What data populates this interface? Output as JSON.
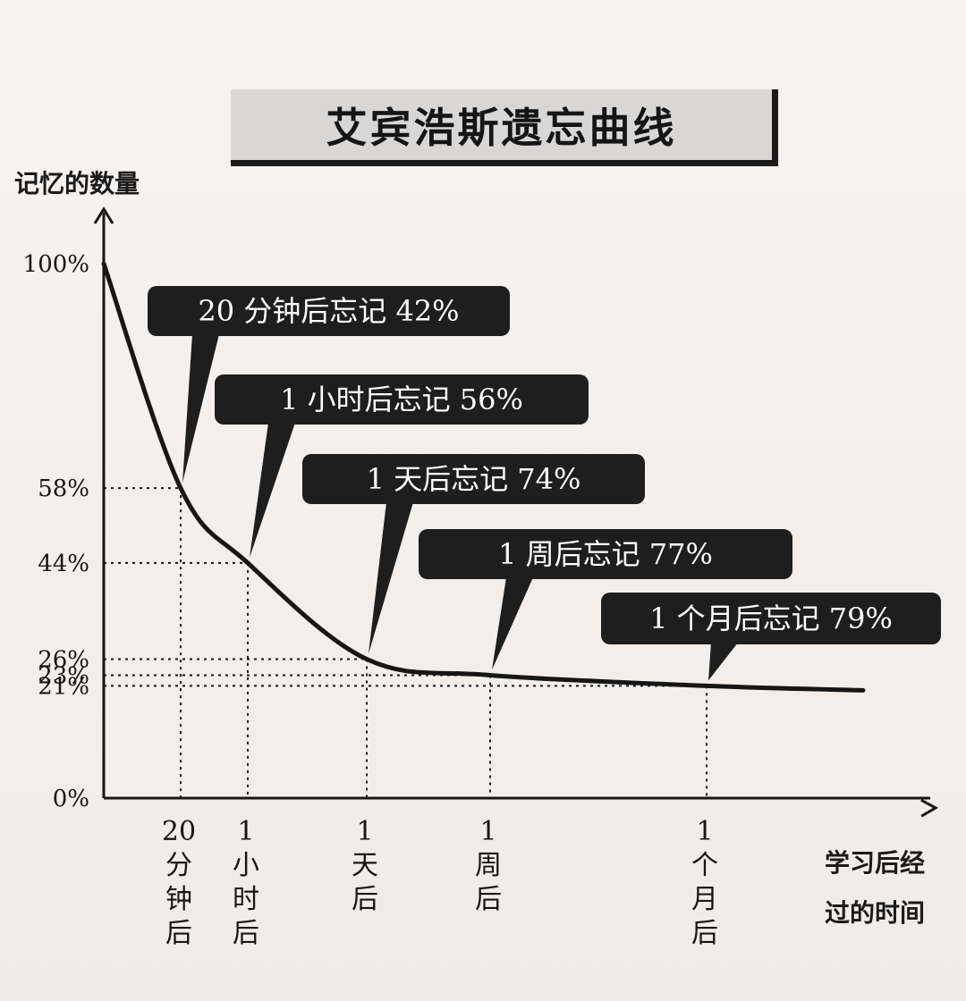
{
  "chart_data": {
    "type": "line",
    "title": "艾宾浩斯遗忘曲线",
    "ylabel": "记忆的数量",
    "xlabel": "学习后经过的时间",
    "ylim": [
      0,
      100
    ],
    "y_ticks": [
      "100%",
      "58%",
      "44%",
      "26%",
      "23%",
      "21%",
      "0%"
    ],
    "y_tick_values": [
      100,
      58,
      44,
      26,
      23,
      21,
      0
    ],
    "points": [
      {
        "x": "20分钟后",
        "x_lines": [
          "20",
          "分",
          "钟",
          "后"
        ],
        "y": 58,
        "callout": "20 分钟后忘记 42%"
      },
      {
        "x": "1小时后",
        "x_lines": [
          "1",
          "小",
          "时",
          "后"
        ],
        "y": 44,
        "callout": "1 小时后忘记 56%"
      },
      {
        "x": "1天后",
        "x_lines": [
          "1",
          "天",
          "后"
        ],
        "y": 26,
        "callout": "1 天后忘记 74%"
      },
      {
        "x": "1周后",
        "x_lines": [
          "1",
          "周",
          "后"
        ],
        "y": 23,
        "callout": "1 周后忘记 77%"
      },
      {
        "x": "1个月后",
        "x_lines": [
          "1",
          "个",
          "月",
          "后"
        ],
        "y": 21,
        "callout": "1 个月后忘记 79%"
      }
    ],
    "xlabel_lines": [
      "学习后经",
      "过的时间"
    ],
    "grid": false
  },
  "colors": {
    "ink": "#161616",
    "callout_fill": "#1e1e1e",
    "callout_text": "#ffffff",
    "title_bg": "#d9d7d6"
  }
}
